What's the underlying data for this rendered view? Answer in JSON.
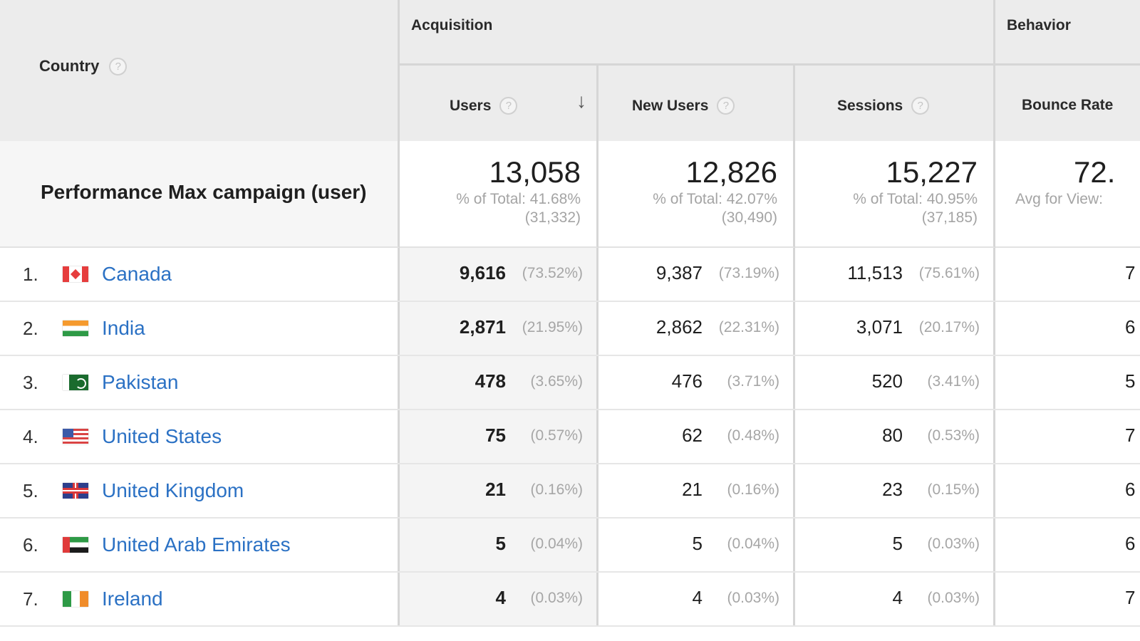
{
  "header": {
    "country_label": "Country",
    "help_glyph": "?",
    "groups": {
      "acquisition": "Acquisition",
      "behavior": "Behavior"
    },
    "columns": {
      "users": "Users",
      "new_users": "New Users",
      "sessions": "Sessions",
      "bounce_rate": "Bounce Rate"
    },
    "sort_icon": "arrow-down-icon",
    "sort_glyph": "↓"
  },
  "summary": {
    "label": "Performance Max campaign (user)",
    "users": {
      "value": "13,058",
      "pct": "% of Total: 41.68%",
      "total": "(31,332)"
    },
    "new_users": {
      "value": "12,826",
      "pct": "% of Total: 42.07%",
      "total": "(30,490)"
    },
    "sessions": {
      "value": "15,227",
      "pct": "% of Total: 40.95%",
      "total": "(37,185)"
    },
    "bounce_rate": {
      "value": "72.",
      "pct": "Avg for View:"
    }
  },
  "rows": [
    {
      "rank": "1.",
      "country": "Canada",
      "flag": "canada-flag-icon",
      "users": "9,616",
      "users_pct": "(73.52%)",
      "new_users": "9,387",
      "new_users_pct": "(73.19%)",
      "sessions": "11,513",
      "sessions_pct": "(75.61%)",
      "bounce": "7"
    },
    {
      "rank": "2.",
      "country": "India",
      "flag": "india-flag-icon",
      "users": "2,871",
      "users_pct": "(21.95%)",
      "new_users": "2,862",
      "new_users_pct": "(22.31%)",
      "sessions": "3,071",
      "sessions_pct": "(20.17%)",
      "bounce": "6"
    },
    {
      "rank": "3.",
      "country": "Pakistan",
      "flag": "pakistan-flag-icon",
      "users": "478",
      "users_pct": "(3.65%)",
      "new_users": "476",
      "new_users_pct": "(3.71%)",
      "sessions": "520",
      "sessions_pct": "(3.41%)",
      "bounce": "5"
    },
    {
      "rank": "4.",
      "country": "United States",
      "flag": "us-flag-icon",
      "users": "75",
      "users_pct": "(0.57%)",
      "new_users": "62",
      "new_users_pct": "(0.48%)",
      "sessions": "80",
      "sessions_pct": "(0.53%)",
      "bounce": "7"
    },
    {
      "rank": "5.",
      "country": "United Kingdom",
      "flag": "uk-flag-icon",
      "users": "21",
      "users_pct": "(0.16%)",
      "new_users": "21",
      "new_users_pct": "(0.16%)",
      "sessions": "23",
      "sessions_pct": "(0.15%)",
      "bounce": "6"
    },
    {
      "rank": "6.",
      "country": "United Arab Emirates",
      "flag": "uae-flag-icon",
      "users": "5",
      "users_pct": "(0.04%)",
      "new_users": "5",
      "new_users_pct": "(0.04%)",
      "sessions": "5",
      "sessions_pct": "(0.03%)",
      "bounce": "6"
    },
    {
      "rank": "7.",
      "country": "Ireland",
      "flag": "ireland-flag-icon",
      "users": "4",
      "users_pct": "(0.03%)",
      "new_users": "4",
      "new_users_pct": "(0.03%)",
      "sessions": "4",
      "sessions_pct": "(0.03%)",
      "bounce": "7"
    }
  ]
}
